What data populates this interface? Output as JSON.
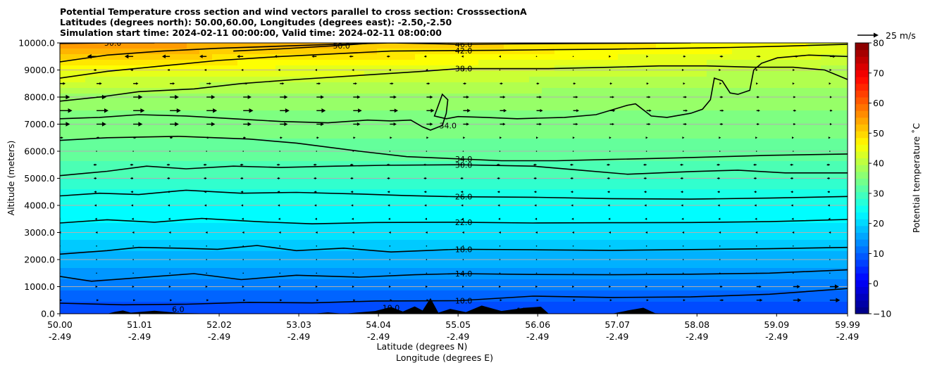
{
  "chart_data": {
    "type": "heatmap",
    "title_lines": [
      "Potential Temperature cross section and wind vectors parallel to cross section: CrosssectionA",
      "Latitudes (degrees north): 50.00,60.00, Longitudes (degrees east): -2.50,-2.50",
      "Simulation start time: 2024-02-11 00:00:00, Valid time: 2024-02-11 08:00:00"
    ],
    "xlabel": "Latitude (degrees N)",
    "xlabel2": "Longitude (degrees E)",
    "ylabel": "Altitude (meters)",
    "x_ticks": [
      {
        "lat": 50.0,
        "lat_label": "50.00",
        "lon_label": "-2.49"
      },
      {
        "lat": 51.01,
        "lat_label": "51.01",
        "lon_label": "-2.49"
      },
      {
        "lat": 52.02,
        "lat_label": "52.02",
        "lon_label": "-2.49"
      },
      {
        "lat": 53.03,
        "lat_label": "53.03",
        "lon_label": "-2.49"
      },
      {
        "lat": 54.04,
        "lat_label": "54.04",
        "lon_label": "-2.49"
      },
      {
        "lat": 55.05,
        "lat_label": "55.05",
        "lon_label": "-2.49"
      },
      {
        "lat": 56.06,
        "lat_label": "56.06",
        "lon_label": "-2.49"
      },
      {
        "lat": 57.07,
        "lat_label": "57.07",
        "lon_label": "-2.49"
      },
      {
        "lat": 58.08,
        "lat_label": "58.08",
        "lon_label": "-2.49"
      },
      {
        "lat": 59.09,
        "lat_label": "59.09",
        "lon_label": "-2.49"
      },
      {
        "lat": 59.99,
        "lat_label": "59.99",
        "lon_label": "-2.49"
      }
    ],
    "y_ticks": [
      {
        "value": 0,
        "label": "0.0"
      },
      {
        "value": 1000,
        "label": "1000.0"
      },
      {
        "value": 2000,
        "label": "2000.0"
      },
      {
        "value": 3000,
        "label": "3000.0"
      },
      {
        "value": 4000,
        "label": "4000.0"
      },
      {
        "value": 5000,
        "label": "5000.0"
      },
      {
        "value": 6000,
        "label": "6000.0"
      },
      {
        "value": 7000,
        "label": "7000.0"
      },
      {
        "value": 8000,
        "label": "8000.0"
      },
      {
        "value": 9000,
        "label": "9000.0"
      },
      {
        "value": 10000,
        "label": "10000.0"
      }
    ],
    "xlim": [
      50.0,
      59.99
    ],
    "ylim": [
      0,
      10000
    ],
    "grid": "horizontal",
    "colorbar": {
      "label": "Potential temperature ˚C",
      "range": [
        -10,
        80
      ],
      "ticks": [
        {
          "value": -10,
          "label": "−10"
        },
        {
          "value": 0,
          "label": "0"
        },
        {
          "value": 10,
          "label": "10"
        },
        {
          "value": 20,
          "label": "20"
        },
        {
          "value": 30,
          "label": "30"
        },
        {
          "value": 40,
          "label": "40"
        },
        {
          "value": 50,
          "label": "50"
        },
        {
          "value": 60,
          "label": "60"
        },
        {
          "value": 70,
          "label": "70"
        },
        {
          "value": 80,
          "label": "80"
        }
      ],
      "colormap": "jet"
    },
    "wind_key": {
      "label": "25 m/s",
      "speed": 25
    },
    "contours": [
      {
        "level": 10,
        "label": "10.0",
        "points": [
          [
            50.0,
            390
          ],
          [
            50.8,
            330
          ],
          [
            51.6,
            350
          ],
          [
            52.4,
            420
          ],
          [
            53.2,
            400
          ],
          [
            54.0,
            470
          ],
          [
            55.05,
            480
          ],
          [
            56.0,
            650
          ],
          [
            57.0,
            600
          ],
          [
            58.0,
            620
          ],
          [
            59.0,
            720
          ],
          [
            59.99,
            930
          ]
        ]
      },
      {
        "level": 14,
        "label": "14.0",
        "points": [
          [
            50.0,
            1380
          ],
          [
            50.4,
            1200
          ],
          [
            51.0,
            1330
          ],
          [
            51.7,
            1480
          ],
          [
            52.3,
            1260
          ],
          [
            53.0,
            1420
          ],
          [
            53.8,
            1350
          ],
          [
            54.5,
            1440
          ],
          [
            55.05,
            1480
          ],
          [
            56.0,
            1450
          ],
          [
            57.0,
            1440
          ],
          [
            58.0,
            1460
          ],
          [
            59.0,
            1500
          ],
          [
            59.99,
            1620
          ]
        ]
      },
      {
        "level": 18,
        "label": "18.0",
        "points": [
          [
            50.0,
            2200
          ],
          [
            50.6,
            2330
          ],
          [
            51.0,
            2450
          ],
          [
            51.5,
            2420
          ],
          [
            52.0,
            2380
          ],
          [
            52.5,
            2520
          ],
          [
            53.0,
            2330
          ],
          [
            53.6,
            2420
          ],
          [
            54.2,
            2280
          ],
          [
            55.05,
            2380
          ],
          [
            56.0,
            2360
          ],
          [
            57.0,
            2340
          ],
          [
            58.0,
            2370
          ],
          [
            59.0,
            2400
          ],
          [
            59.99,
            2450
          ]
        ]
      },
      {
        "level": 22,
        "label": "22.0",
        "points": [
          [
            50.0,
            3350
          ],
          [
            50.6,
            3470
          ],
          [
            51.2,
            3380
          ],
          [
            51.8,
            3520
          ],
          [
            52.5,
            3400
          ],
          [
            53.2,
            3320
          ],
          [
            54.0,
            3370
          ],
          [
            55.05,
            3380
          ],
          [
            56.0,
            3350
          ],
          [
            57.0,
            3360
          ],
          [
            58.0,
            3370
          ],
          [
            59.0,
            3400
          ],
          [
            59.99,
            3480
          ]
        ]
      },
      {
        "level": 26,
        "label": "26.0",
        "points": [
          [
            50.0,
            4350
          ],
          [
            50.5,
            4450
          ],
          [
            51.0,
            4400
          ],
          [
            51.6,
            4560
          ],
          [
            52.3,
            4450
          ],
          [
            53.0,
            4480
          ],
          [
            53.8,
            4420
          ],
          [
            54.4,
            4360
          ],
          [
            55.05,
            4320
          ],
          [
            56.0,
            4300
          ],
          [
            57.0,
            4250
          ],
          [
            58.0,
            4230
          ],
          [
            59.0,
            4270
          ],
          [
            59.99,
            4330
          ]
        ]
      },
      {
        "level": 30,
        "label": "30.0",
        "points": [
          [
            50.0,
            5100
          ],
          [
            50.6,
            5260
          ],
          [
            51.1,
            5450
          ],
          [
            51.6,
            5350
          ],
          [
            52.2,
            5450
          ],
          [
            52.8,
            5400
          ],
          [
            53.5,
            5450
          ],
          [
            54.1,
            5480
          ],
          [
            55.05,
            5500
          ],
          [
            56.0,
            5450
          ],
          [
            56.6,
            5300
          ],
          [
            57.2,
            5150
          ],
          [
            58.0,
            5250
          ],
          [
            58.6,
            5300
          ],
          [
            59.2,
            5200
          ],
          [
            59.99,
            5200
          ]
        ]
      },
      {
        "level": 34,
        "label": "34.0",
        "points": [
          [
            50.0,
            6400
          ],
          [
            50.6,
            6500
          ],
          [
            51.5,
            6550
          ],
          [
            52.4,
            6450
          ],
          [
            53.0,
            6300
          ],
          [
            53.8,
            6000
          ],
          [
            54.4,
            5800
          ],
          [
            55.05,
            5720
          ],
          [
            55.6,
            5650
          ],
          [
            56.3,
            5650
          ],
          [
            57.0,
            5700
          ],
          [
            57.8,
            5750
          ],
          [
            58.4,
            5800
          ],
          [
            59.0,
            5850
          ],
          [
            59.99,
            5900
          ]
        ]
      },
      {
        "level": 34,
        "label": "34.0",
        "points": [
          [
            50.0,
            7200
          ],
          [
            50.5,
            7250
          ],
          [
            51.0,
            7350
          ],
          [
            51.6,
            7300
          ],
          [
            52.2,
            7200
          ],
          [
            52.8,
            7100
          ],
          [
            53.4,
            7050
          ],
          [
            53.9,
            7150
          ],
          [
            54.2,
            7120
          ],
          [
            54.45,
            7150
          ],
          [
            54.6,
            6900
          ],
          [
            54.7,
            6780
          ],
          [
            54.85,
            6950
          ],
          [
            54.9,
            7400
          ],
          [
            54.92,
            7900
          ],
          [
            54.85,
            8100
          ],
          [
            54.8,
            7700
          ],
          [
            54.75,
            7300
          ],
          [
            54.9,
            7200
          ],
          [
            55.05,
            7280
          ],
          [
            55.4,
            7250
          ],
          [
            55.8,
            7200
          ],
          [
            56.4,
            7250
          ],
          [
            56.8,
            7350
          ],
          [
            57.2,
            7700
          ],
          [
            57.3,
            7750
          ],
          [
            57.5,
            7300
          ],
          [
            57.7,
            7250
          ],
          [
            58.0,
            7400
          ],
          [
            58.15,
            7550
          ],
          [
            58.25,
            7900
          ],
          [
            58.3,
            8700
          ],
          [
            58.4,
            8600
          ],
          [
            58.5,
            8150
          ],
          [
            58.6,
            8100
          ],
          [
            58.75,
            8250
          ],
          [
            58.8,
            9000
          ],
          [
            58.9,
            9250
          ],
          [
            59.1,
            9450
          ],
          [
            59.5,
            9550
          ],
          [
            59.99,
            9500
          ]
        ]
      },
      {
        "level": 38,
        "label": "38.0",
        "points": [
          [
            50.0,
            7850
          ],
          [
            50.5,
            8000
          ],
          [
            51.0,
            8200
          ],
          [
            51.7,
            8300
          ],
          [
            52.3,
            8500
          ],
          [
            53.0,
            8650
          ],
          [
            53.8,
            8800
          ],
          [
            54.6,
            8950
          ],
          [
            55.05,
            9050
          ],
          [
            55.5,
            9050
          ],
          [
            56.2,
            9050
          ],
          [
            57.0,
            9100
          ],
          [
            57.6,
            9150
          ],
          [
            58.2,
            9150
          ],
          [
            58.8,
            9100
          ],
          [
            59.3,
            9100
          ],
          [
            59.7,
            9000
          ],
          [
            59.99,
            8650
          ]
        ]
      },
      {
        "level": 42,
        "label": "42.0",
        "points": [
          [
            50.0,
            8700
          ],
          [
            50.6,
            8950
          ],
          [
            51.3,
            9150
          ],
          [
            52.0,
            9350
          ],
          [
            52.8,
            9500
          ],
          [
            53.5,
            9600
          ],
          [
            54.2,
            9700
          ],
          [
            55.05,
            9720
          ],
          [
            55.6,
            9730
          ],
          [
            56.3,
            9750
          ],
          [
            57.0,
            9770
          ],
          [
            57.8,
            9800
          ],
          [
            58.5,
            9830
          ],
          [
            59.2,
            9880
          ],
          [
            59.99,
            9950
          ]
        ]
      },
      {
        "level": 46,
        "label": "46.0",
        "points": [
          [
            50.0,
            9300
          ],
          [
            50.6,
            9550
          ],
          [
            51.3,
            9700
          ],
          [
            52.0,
            9800
          ],
          [
            52.8,
            9880
          ],
          [
            53.5,
            9950
          ],
          [
            54.2,
            10000
          ],
          [
            55.05,
            9950
          ],
          [
            55.6,
            9960
          ],
          [
            56.5,
            9980
          ],
          [
            57.3,
            9990
          ],
          [
            58.0,
            10000
          ]
        ]
      },
      {
        "level": 50,
        "label": "50.0",
        "points": [
          [
            50.0,
            9980
          ],
          [
            50.6,
            10000
          ],
          [
            51.2,
            10000
          ]
        ]
      },
      {
        "level": 50,
        "label": "50.0",
        "points": [
          [
            52.2,
            9700
          ],
          [
            52.8,
            9780
          ],
          [
            53.5,
            9900
          ],
          [
            54.0,
            10000
          ]
        ]
      }
    ],
    "surface_labels": [
      "6.0",
      "10.0",
      "10.0"
    ],
    "terrain": [
      [
        50.0,
        0
      ],
      [
        50.6,
        0
      ],
      [
        50.7,
        70
      ],
      [
        50.8,
        120
      ],
      [
        50.9,
        40
      ],
      [
        51.2,
        110
      ],
      [
        51.5,
        30
      ],
      [
        52.0,
        0
      ],
      [
        53.2,
        0
      ],
      [
        53.4,
        50
      ],
      [
        53.6,
        0
      ],
      [
        54.0,
        100
      ],
      [
        54.2,
        250
      ],
      [
        54.35,
        80
      ],
      [
        54.5,
        270
      ],
      [
        54.6,
        120
      ],
      [
        54.7,
        580
      ],
      [
        54.8,
        40
      ],
      [
        54.95,
        180
      ],
      [
        55.15,
        60
      ],
      [
        55.35,
        300
      ],
      [
        55.6,
        100
      ],
      [
        55.9,
        220
      ],
      [
        56.1,
        260
      ],
      [
        56.2,
        0
      ],
      [
        57.0,
        0
      ],
      [
        57.2,
        120
      ],
      [
        57.4,
        220
      ],
      [
        57.55,
        20
      ],
      [
        57.7,
        0
      ],
      [
        59.99,
        0
      ]
    ],
    "wind_levels": [
      500,
      1000,
      1500,
      2000,
      2500,
      3000,
      3500,
      4000,
      4500,
      5000,
      5500,
      6000,
      6500,
      7000,
      7500,
      8000,
      8500,
      9000,
      9500
    ],
    "wind_lat_start": 50.0,
    "wind_lat_step": 0.465,
    "wind_profile": [
      {
        "alt": 500,
        "u": 2
      },
      {
        "alt": 1000,
        "u": 1
      },
      {
        "alt": 2000,
        "u": 0
      },
      {
        "alt": 3000,
        "u": -1
      },
      {
        "alt": 4000,
        "u": -2
      },
      {
        "alt": 5500,
        "u": -3
      },
      {
        "alt": 6500,
        "u": 3
      },
      {
        "alt": 7000,
        "u": 9
      },
      {
        "alt": 7500,
        "u": 11
      },
      {
        "alt": 8000,
        "u": 9
      },
      {
        "alt": 8500,
        "u": 5
      },
      {
        "alt": 9000,
        "u": -3
      },
      {
        "alt": 9500,
        "u": -9
      }
    ]
  }
}
